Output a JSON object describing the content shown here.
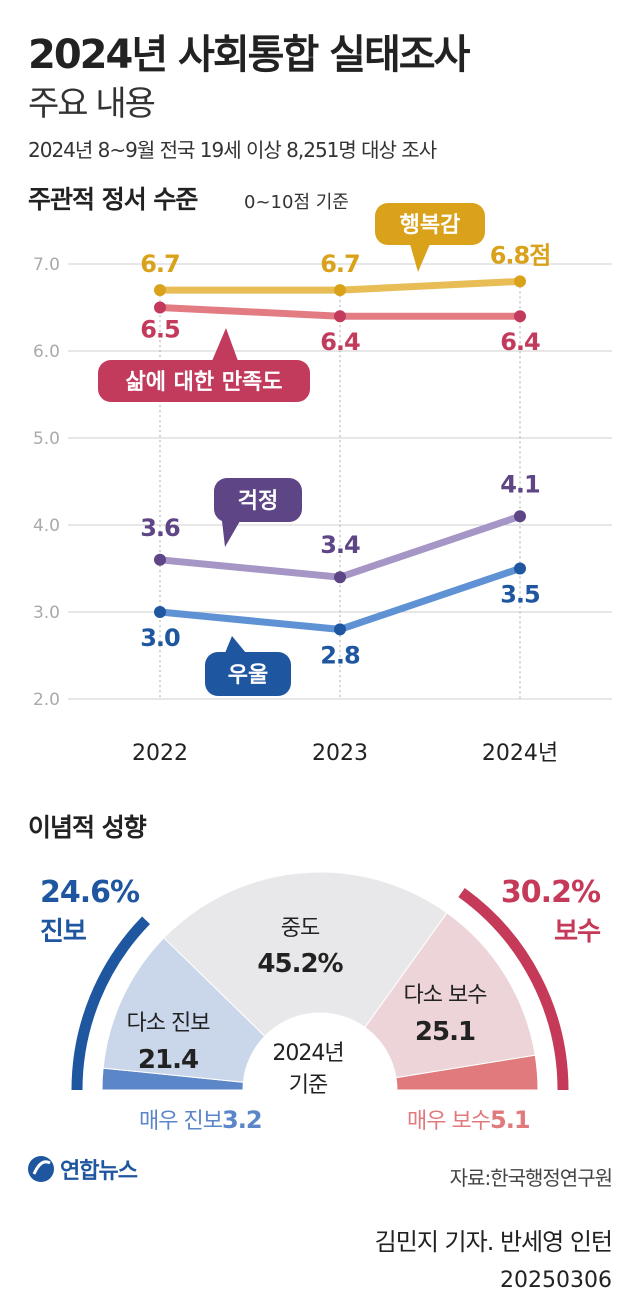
{
  "header": {
    "title": "2024년 사회통합 실태조사",
    "subtitle": "주요 내용",
    "description": "2024년 8~9월 전국 19세 이상 8,251명 대상 조사"
  },
  "section1": {
    "title": "주관적 정서 수준",
    "note": "0~10점 기준"
  },
  "section2": {
    "title": "이념적 성향"
  },
  "chart_data": [
    {
      "type": "line",
      "categories": [
        "2022",
        "2023",
        "2024년"
      ],
      "ylim": [
        2.0,
        7.0
      ],
      "yticks": [
        "2.0",
        "3.0",
        "4.0",
        "5.0",
        "6.0",
        "7.0"
      ],
      "grid": true,
      "series": [
        {
          "name": "행복감",
          "values": [
            6.7,
            6.7,
            6.8
          ],
          "labels": [
            "6.7",
            "6.7",
            "6.8점"
          ],
          "color": "#d9a21a",
          "line_color": "#e8bd55"
        },
        {
          "name": "삶에 대한 만족도",
          "values": [
            6.5,
            6.4,
            6.4
          ],
          "labels": [
            "6.5",
            "6.4",
            "6.4"
          ],
          "color": "#c23a5c",
          "line_color": "#e27b82"
        },
        {
          "name": "걱정",
          "values": [
            3.6,
            3.4,
            4.1
          ],
          "labels": [
            "3.6",
            "3.4",
            "4.1"
          ],
          "color": "#5e4585",
          "line_color": "#a596c6"
        },
        {
          "name": "우울",
          "values": [
            3.0,
            2.8,
            3.5
          ],
          "labels": [
            "3.0",
            "2.8",
            "3.5"
          ],
          "color": "#1f56a0",
          "line_color": "#5f92d4"
        }
      ]
    },
    {
      "type": "pie",
      "subtype": "semicircle",
      "center_label": [
        "2024년",
        "기준"
      ],
      "slices": [
        {
          "name": "매우 진보",
          "value": 3.2,
          "color": "#5b86c8"
        },
        {
          "name": "다소 진보",
          "value": 21.4,
          "color": "#cad7ea"
        },
        {
          "name": "중도",
          "value": 45.2,
          "label": "45.2%",
          "color": "#e8e8ea"
        },
        {
          "name": "다소 보수",
          "value": 25.1,
          "color": "#edd4d8"
        },
        {
          "name": "매우 보수",
          "value": 5.1,
          "color": "#e07a7c"
        }
      ],
      "groups": [
        {
          "name": "진보",
          "value": "24.6%",
          "color": "#1f56a0"
        },
        {
          "name": "보수",
          "value": "30.2%",
          "color": "#c43a58"
        }
      ]
    }
  ],
  "footer": {
    "logo": "연합뉴스",
    "source": "자료:한국행정연구원",
    "byline": "김민지 기자. 반세영 인턴",
    "date": "20250306"
  }
}
